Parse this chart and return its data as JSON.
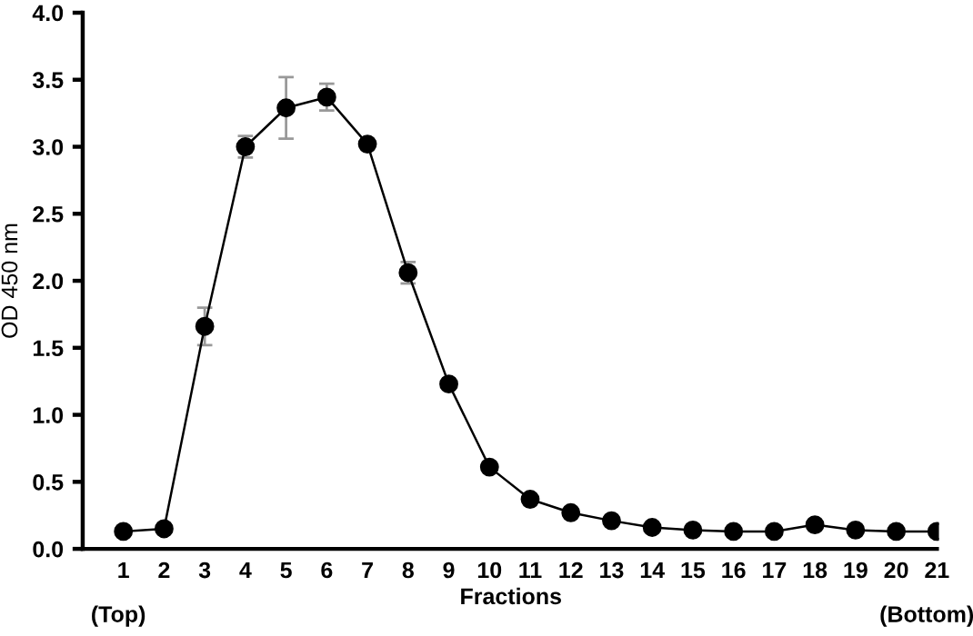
{
  "chart_data": {
    "type": "line",
    "xlabel": "Fractions",
    "ylabel": "OD 450 nm",
    "categories": [
      "1",
      "2",
      "3",
      "4",
      "5",
      "6",
      "7",
      "8",
      "9",
      "10",
      "11",
      "12",
      "13",
      "14",
      "15",
      "16",
      "17",
      "18",
      "19",
      "20",
      "21"
    ],
    "series": [
      {
        "color": "#000000",
        "values": [
          0.13,
          0.15,
          1.66,
          3.0,
          3.29,
          3.37,
          3.02,
          2.06,
          1.23,
          0.61,
          0.37,
          0.27,
          0.21,
          0.16,
          0.14,
          0.13,
          0.13,
          0.18,
          0.14,
          0.13,
          0.13
        ],
        "errors": [
          null,
          null,
          0.14,
          0.08,
          0.23,
          0.1,
          0.03,
          0.08,
          null,
          null,
          null,
          null,
          null,
          null,
          null,
          null,
          null,
          null,
          null,
          null,
          null
        ]
      }
    ],
    "ylim": [
      0,
      4.0
    ],
    "yticks": [
      {
        "value": 0,
        "label": "0.0"
      },
      0.5,
      {
        "value": 1,
        "label": "1.0"
      },
      1.5,
      {
        "value": 2,
        "label": "2.0"
      },
      2.5,
      {
        "value": 3,
        "label": "3.0"
      },
      3.5,
      {
        "value": 4,
        "label": "4.0"
      }
    ],
    "annotations": [
      "(Top)",
      "(Bottom)"
    ],
    "marker": "circle",
    "line_style": "solid",
    "grid": false,
    "legend": false
  }
}
